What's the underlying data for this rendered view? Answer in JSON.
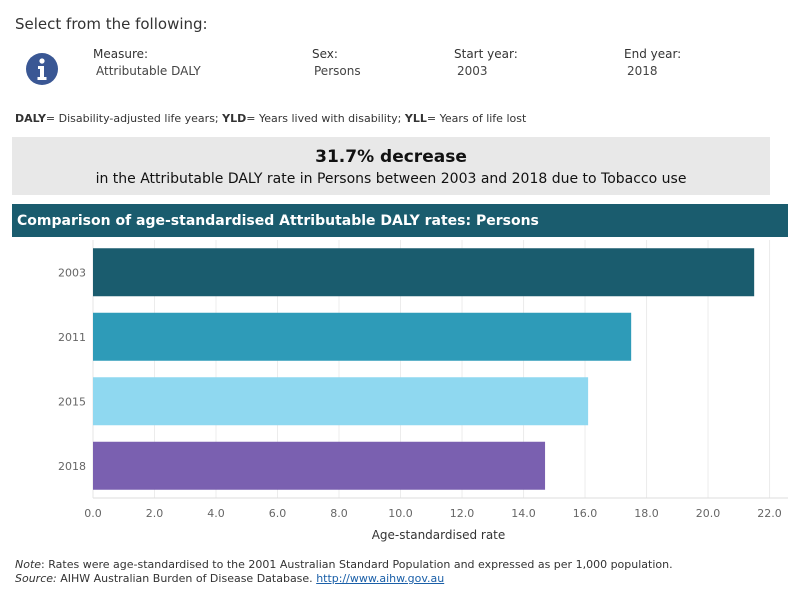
{
  "selector": {
    "title": "Select from the following:",
    "filters": [
      {
        "label": "Measure:",
        "value": "Attributable DALY"
      },
      {
        "label": "Sex:",
        "value": "Persons"
      },
      {
        "label": "Start year:",
        "value": "2003"
      },
      {
        "label": "End year:",
        "value": "2018"
      }
    ],
    "info_icon": "info-circle-icon"
  },
  "glossary": {
    "daly_abbr": "DALY",
    "daly_def": "= Disability-adjusted life years;",
    "yld_abbr": "YLD",
    "yld_def": "= Years lived with disability;",
    "yll_abbr": "YLL",
    "yll_def": "= Years of life lost"
  },
  "summary": {
    "headline": "31.7% decrease",
    "text": "in the Attributable DALY rate in Persons between 2003 and 2018 due to Tobacco use"
  },
  "chart_header": "Comparison of age-standardised Attributable DALY rates: Persons",
  "chart_data": {
    "type": "bar",
    "orientation": "horizontal",
    "categories": [
      "2003",
      "2011",
      "2015",
      "2018"
    ],
    "values": [
      21.5,
      17.5,
      16.1,
      14.7
    ],
    "colors": [
      "#1a5c6e",
      "#2e9bb8",
      "#8fd8f0",
      "#7a60b0"
    ],
    "xlabel": "Age-standardised rate",
    "xlim": [
      0,
      22.6
    ],
    "xticks": [
      "0.0",
      "2.0",
      "4.0",
      "6.0",
      "8.0",
      "10.0",
      "12.0",
      "14.0",
      "16.0",
      "18.0",
      "20.0",
      "22.0"
    ],
    "grid": true
  },
  "footer": {
    "note_label": "Note",
    "note_text": ": Rates were age-standardised to the 2001 Australian Standard Population and expressed as per 1,000 population.",
    "source_label": "Source:",
    "source_text": " AIHW Australian Burden of Disease Database. ",
    "source_link": "http://www.aihw.gov.au"
  }
}
